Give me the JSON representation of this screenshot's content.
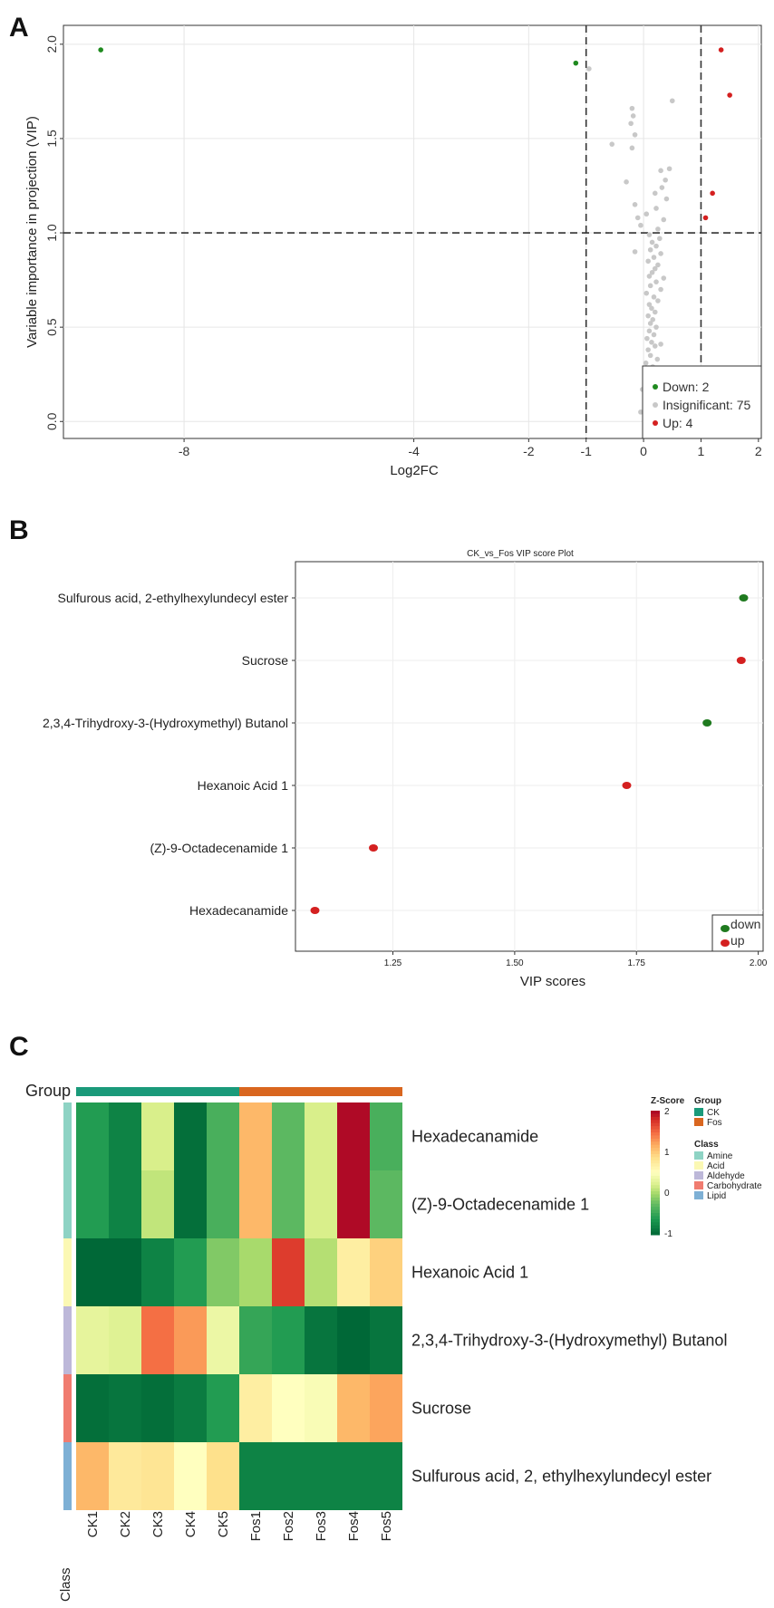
{
  "panel_labels": [
    "A",
    "B",
    "C"
  ],
  "chart_data": [
    {
      "type": "scatter",
      "panel": "A",
      "title": "",
      "xlabel": "Log2FC",
      "ylabel": "Variable importance in projection (VIP)",
      "xlim": [
        -10.1,
        2.05
      ],
      "ylim": [
        -0.09,
        2.1
      ],
      "xticks": [
        -8,
        -4,
        -2,
        -1,
        0,
        1,
        2
      ],
      "yticks": [
        0.0,
        0.5,
        1.0,
        1.5,
        2.0
      ],
      "xtick_labels": [
        "-8",
        "-4",
        "-2",
        "-1",
        "0",
        "1",
        "2"
      ],
      "ytick_labels": [
        "0.0",
        "0.5",
        "1.0",
        "1.5",
        "2.0"
      ],
      "thresholds": {
        "x": [
          -1,
          1
        ],
        "y": 1.0
      },
      "legend": {
        "position": "bottom-right",
        "items": [
          {
            "label": "Down: 2",
            "color": "#1f8a1f"
          },
          {
            "label": "Insignificant: 75",
            "color": "#c8c8c8"
          },
          {
            "label": "Up: 4",
            "color": "#d42020"
          }
        ]
      },
      "series": [
        {
          "name": "Down",
          "color": "#1f8a1f",
          "points": [
            [
              -9.45,
              1.97
            ],
            [
              -1.18,
              1.9
            ]
          ]
        },
        {
          "name": "Up",
          "color": "#d42020",
          "points": [
            [
              1.35,
              1.97
            ],
            [
              1.5,
              1.73
            ],
            [
              1.2,
              1.21
            ],
            [
              1.08,
              1.08
            ]
          ]
        },
        {
          "name": "Insignificant",
          "color": "#c8c8c8",
          "points": [
            [
              -0.95,
              1.87
            ],
            [
              0.5,
              1.7
            ],
            [
              -0.2,
              1.66
            ],
            [
              -0.18,
              1.62
            ],
            [
              -0.22,
              1.58
            ],
            [
              -0.15,
              1.52
            ],
            [
              -0.55,
              1.47
            ],
            [
              -0.2,
              1.45
            ],
            [
              0.45,
              1.34
            ],
            [
              0.3,
              1.33
            ],
            [
              0.38,
              1.28
            ],
            [
              -0.3,
              1.27
            ],
            [
              0.32,
              1.24
            ],
            [
              0.2,
              1.21
            ],
            [
              0.4,
              1.18
            ],
            [
              -0.15,
              1.15
            ],
            [
              0.22,
              1.13
            ],
            [
              0.05,
              1.1
            ],
            [
              -0.1,
              1.08
            ],
            [
              0.35,
              1.07
            ],
            [
              -0.05,
              1.04
            ],
            [
              0.25,
              1.02
            ],
            [
              0.1,
              0.99
            ],
            [
              0.28,
              0.97
            ],
            [
              0.15,
              0.95
            ],
            [
              0.22,
              0.93
            ],
            [
              0.12,
              0.91
            ],
            [
              -0.15,
              0.9
            ],
            [
              0.3,
              0.89
            ],
            [
              0.18,
              0.87
            ],
            [
              0.08,
              0.85
            ],
            [
              0.25,
              0.83
            ],
            [
              0.2,
              0.81
            ],
            [
              0.15,
              0.79
            ],
            [
              0.1,
              0.77
            ],
            [
              0.35,
              0.76
            ],
            [
              0.22,
              0.74
            ],
            [
              0.12,
              0.72
            ],
            [
              0.3,
              0.7
            ],
            [
              0.05,
              0.68
            ],
            [
              0.18,
              0.66
            ],
            [
              0.25,
              0.64
            ],
            [
              0.1,
              0.62
            ],
            [
              0.14,
              0.6
            ],
            [
              0.2,
              0.58
            ],
            [
              0.08,
              0.56
            ],
            [
              0.16,
              0.54
            ],
            [
              0.12,
              0.52
            ],
            [
              0.22,
              0.5
            ],
            [
              0.1,
              0.48
            ],
            [
              0.18,
              0.46
            ],
            [
              0.06,
              0.44
            ],
            [
              0.14,
              0.42
            ],
            [
              0.3,
              0.41
            ],
            [
              0.2,
              0.4
            ],
            [
              0.08,
              0.38
            ],
            [
              0.12,
              0.35
            ],
            [
              0.24,
              0.33
            ],
            [
              0.04,
              0.31
            ],
            [
              0.16,
              0.29
            ],
            [
              0.1,
              0.26
            ],
            [
              0.2,
              0.24
            ],
            [
              0.06,
              0.22
            ],
            [
              0.14,
              0.2
            ],
            [
              -0.02,
              0.17
            ],
            [
              0.18,
              0.15
            ],
            [
              0.08,
              0.13
            ],
            [
              0.12,
              0.11
            ],
            [
              0.02,
              0.09
            ],
            [
              0.22,
              0.07
            ],
            [
              -0.05,
              0.05
            ],
            [
              0.15,
              0.04
            ],
            [
              0.1,
              0.02
            ],
            [
              0.25,
              0.01
            ],
            [
              0.03,
              -0.01
            ]
          ]
        }
      ]
    },
    {
      "type": "scatter",
      "panel": "B",
      "title": "CK_vs_Fos VIP score Plot",
      "xlabel": "VIP scores",
      "ylabel": "",
      "xlim": [
        1.05,
        2.01
      ],
      "xticks": [
        1.25,
        1.5,
        1.75,
        2.0
      ],
      "xtick_labels": [
        "1.25",
        "1.50",
        "1.75",
        "2.00"
      ],
      "categories": [
        "Sulfurous acid, 2-ethylhexylundecyl ester",
        "Sucrose",
        "2,3,4-Trihydroxy-3-(Hydroxymethyl) Butanol",
        "Hexanoic Acid 1",
        "(Z)-9-Octadecenamide 1",
        "Hexadecanamide"
      ],
      "values": [
        1.97,
        1.965,
        1.895,
        1.73,
        1.21,
        1.09
      ],
      "groups": [
        "down",
        "up",
        "down",
        "up",
        "up",
        "up"
      ],
      "legend": {
        "position": "bottom-right",
        "items": [
          {
            "label": "down",
            "color": "#1f7a1f"
          },
          {
            "label": "up",
            "color": "#d42020"
          }
        ]
      }
    },
    {
      "type": "heatmap",
      "panel": "C",
      "title": "",
      "columns": [
        "CK1",
        "CK2",
        "CK3",
        "CK4",
        "CK5",
        "Fos1",
        "Fos2",
        "Fos3",
        "Fos4",
        "Fos5"
      ],
      "column_groups": [
        "CK",
        "CK",
        "CK",
        "CK",
        "CK",
        "Fos",
        "Fos",
        "Fos",
        "Fos",
        "Fos"
      ],
      "rows": [
        "Hexadecanamide",
        "(Z)-9-Octadecenamide 1",
        "Hexanoic Acid 1",
        "2,3,4-Trihydroxy-3-(Hydroxymethyl) Butanol",
        "Sucrose",
        "Sulfurous acid, 2, ethylhexylundecyl ester"
      ],
      "row_classes": [
        "Amine",
        "Amine",
        "Acid",
        "Aldehyde",
        "Carbohydrate",
        "Lipid"
      ],
      "values": [
        [
          -0.6,
          -0.8,
          0.2,
          -0.95,
          -0.4,
          1.1,
          -0.3,
          0.2,
          1.95,
          -0.4
        ],
        [
          -0.6,
          -0.8,
          0.1,
          -0.95,
          -0.4,
          1.1,
          -0.3,
          0.2,
          1.95,
          -0.3
        ],
        [
          -1.0,
          -1.05,
          -0.8,
          -0.6,
          -0.15,
          0.0,
          1.7,
          0.05,
          0.7,
          0.95
        ],
        [
          0.3,
          0.25,
          1.45,
          1.25,
          0.35,
          -0.5,
          -0.6,
          -0.9,
          -1.1,
          -0.9
        ],
        [
          -0.95,
          -0.9,
          -0.95,
          -0.85,
          -0.6,
          0.7,
          0.5,
          0.45,
          1.1,
          1.2
        ],
        [
          1.1,
          0.75,
          0.8,
          0.5,
          0.85,
          -0.8,
          -0.8,
          -0.8,
          -0.8,
          -0.8
        ]
      ],
      "colorbar": {
        "title": "Z-Score",
        "min": -1,
        "max": 2,
        "ticks": [
          "2",
          "1",
          "0",
          "-1"
        ]
      },
      "group_legend": {
        "title": "Group",
        "items": [
          {
            "label": "CK",
            "color": "#1a9a7a"
          },
          {
            "label": "Fos",
            "color": "#d9661f"
          }
        ]
      },
      "class_legend": {
        "title": "Class",
        "items": [
          {
            "label": "Amine",
            "color": "#8ed3c4"
          },
          {
            "label": "Acid",
            "color": "#fbf8b4"
          },
          {
            "label": "Aldehyde",
            "color": "#bdb8d9"
          },
          {
            "label": "Carbohydrate",
            "color": "#f07c70"
          },
          {
            "label": "Lipid",
            "color": "#7eb0d5"
          }
        ]
      },
      "group_label": "Group",
      "class_label": "Class"
    }
  ]
}
